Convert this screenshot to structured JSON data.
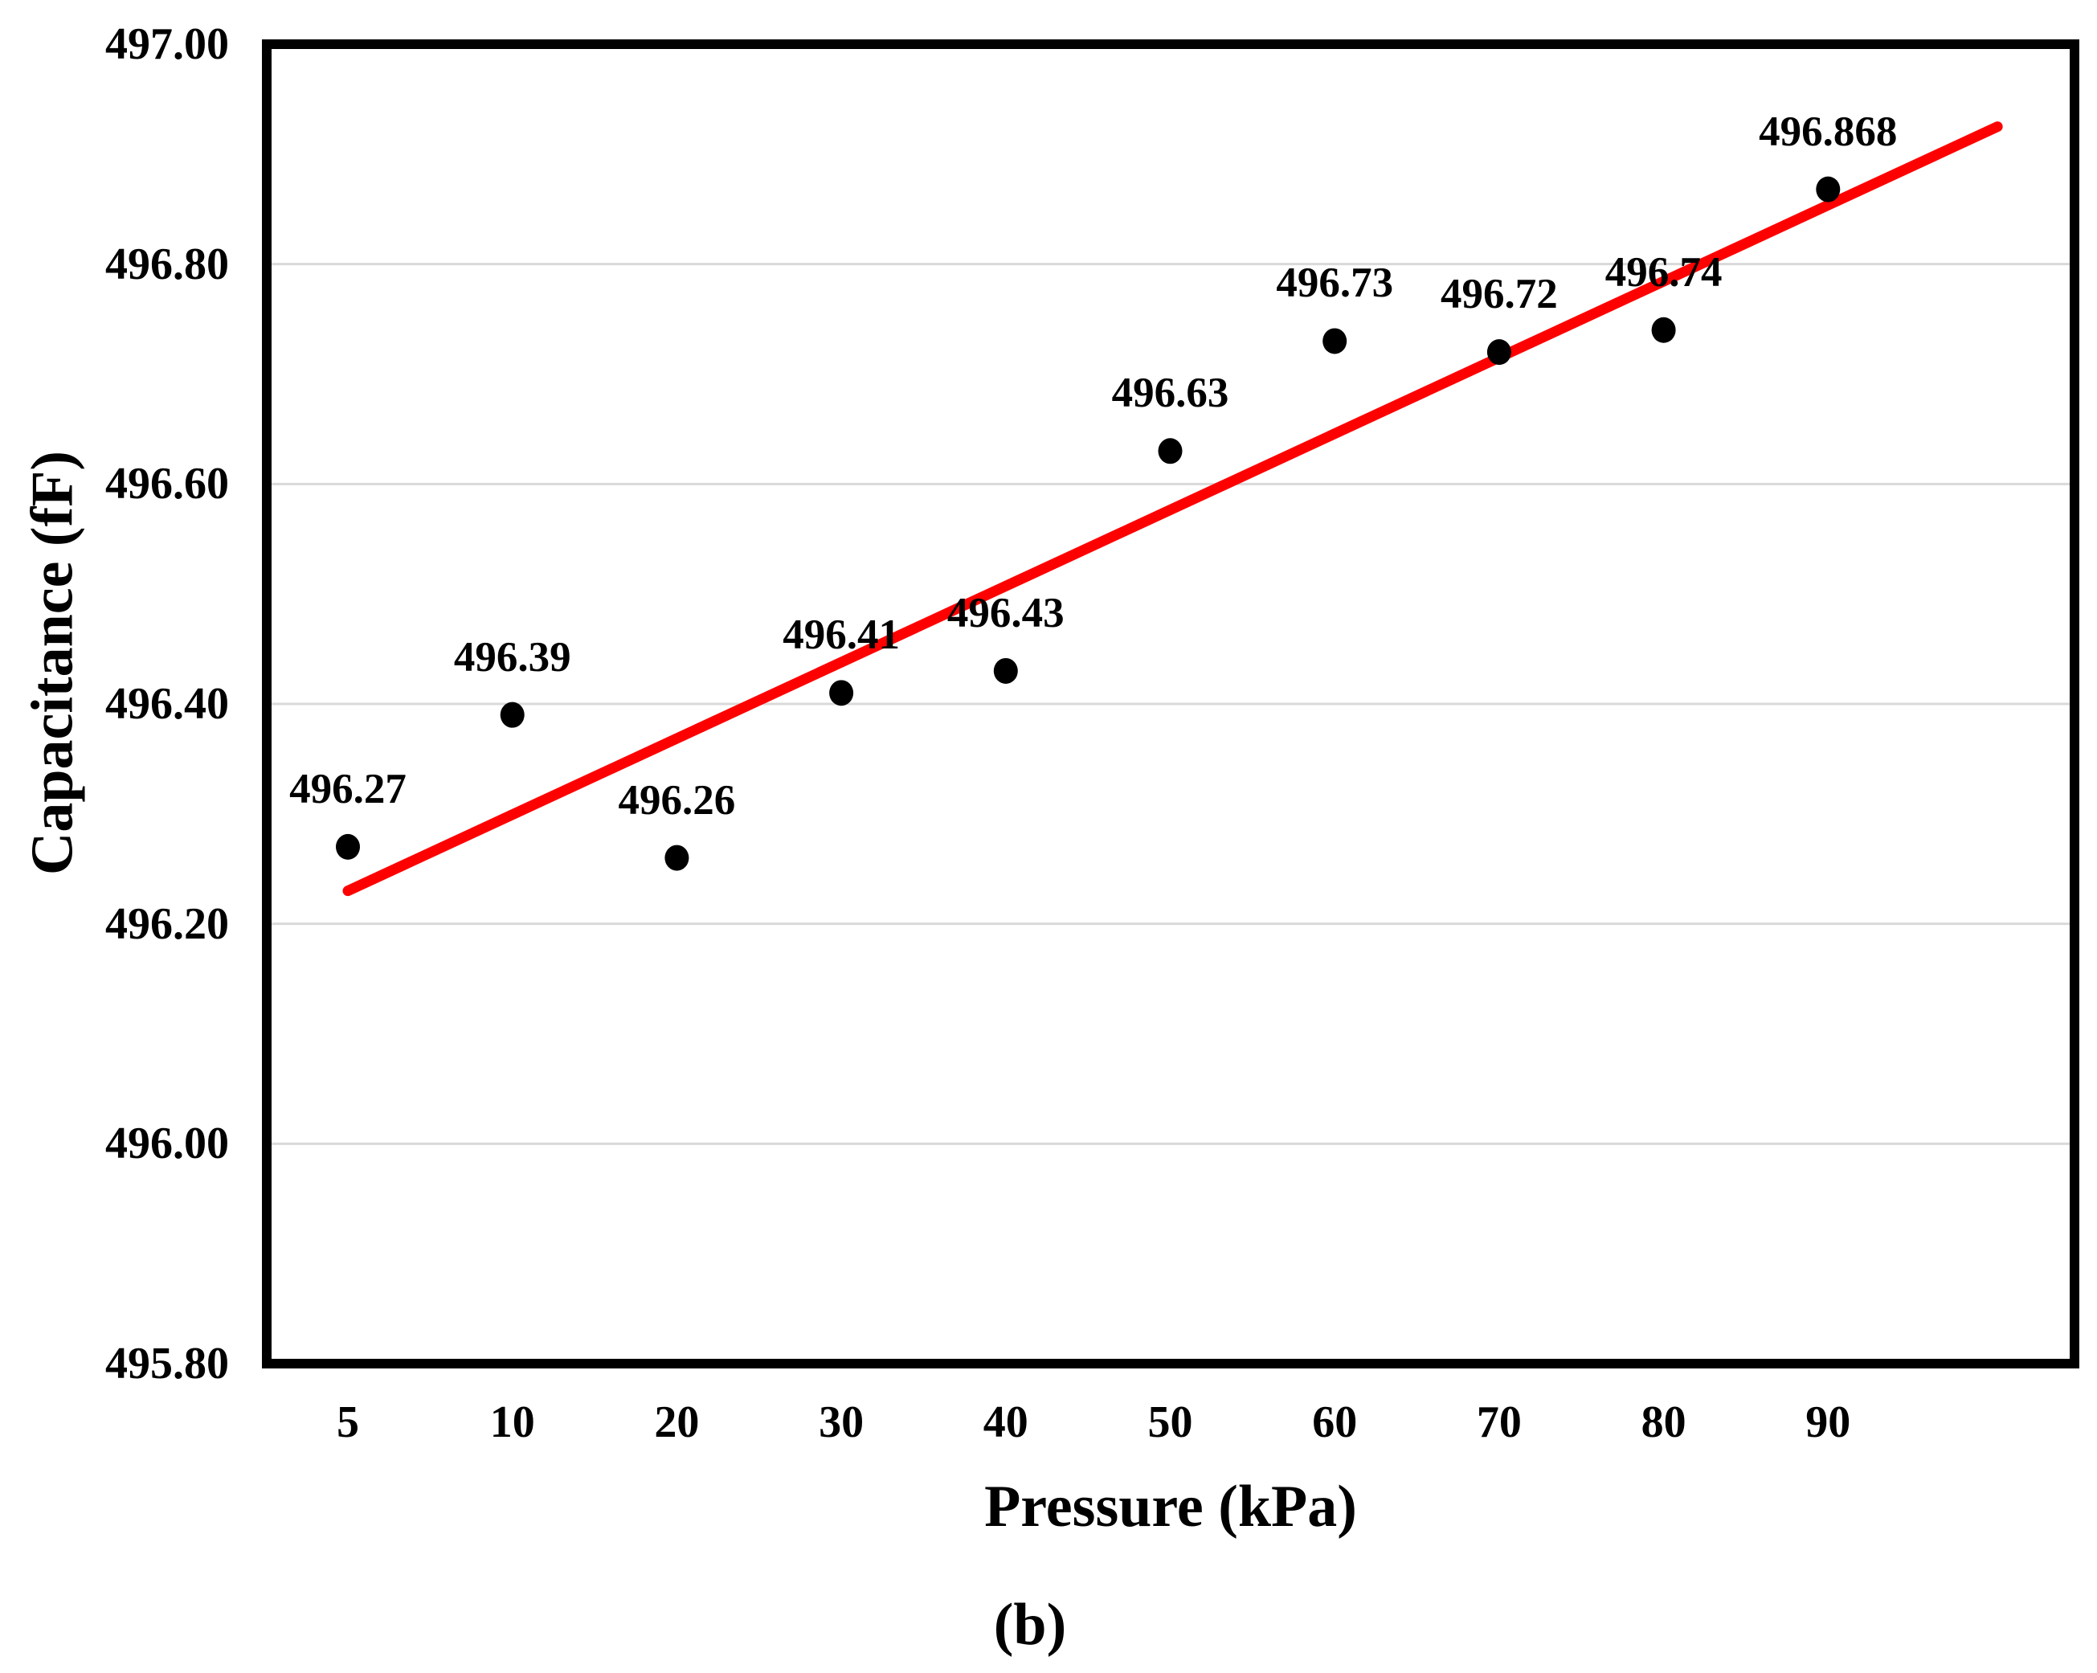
{
  "figure": {
    "caption": "(b)"
  },
  "chart_data": {
    "type": "scatter",
    "title": "",
    "xlabel": "Pressure (kPa)",
    "ylabel": "Capacitance (fF)",
    "categories": [
      "5",
      "10",
      "20",
      "30",
      "40",
      "50",
      "60",
      "70",
      "80",
      "90"
    ],
    "values": [
      496.27,
      496.39,
      496.26,
      496.41,
      496.43,
      496.63,
      496.73,
      496.72,
      496.74,
      496.868
    ],
    "data_labels": [
      "496.27",
      "496.39",
      "496.26",
      "496.41",
      "496.43",
      "496.63",
      "496.73",
      "496.72",
      "496.74",
      "496.868"
    ],
    "y_tick_labels": [
      "497.00",
      "496.80",
      "496.60",
      "496.40",
      "496.20",
      "496.00",
      "495.80"
    ],
    "ylim": [
      495.8,
      497.0
    ],
    "grid": "horizontal-major",
    "legend": "none",
    "marker_color": "#000000",
    "grid_color": "#d9d9d9",
    "axis_color": "#000000",
    "trendline": {
      "type": "linear",
      "color": "#ff0000",
      "start_index": 0,
      "start_value": 496.23,
      "end_index": 10.03,
      "end_value": 496.925
    },
    "caption": "(b)"
  }
}
